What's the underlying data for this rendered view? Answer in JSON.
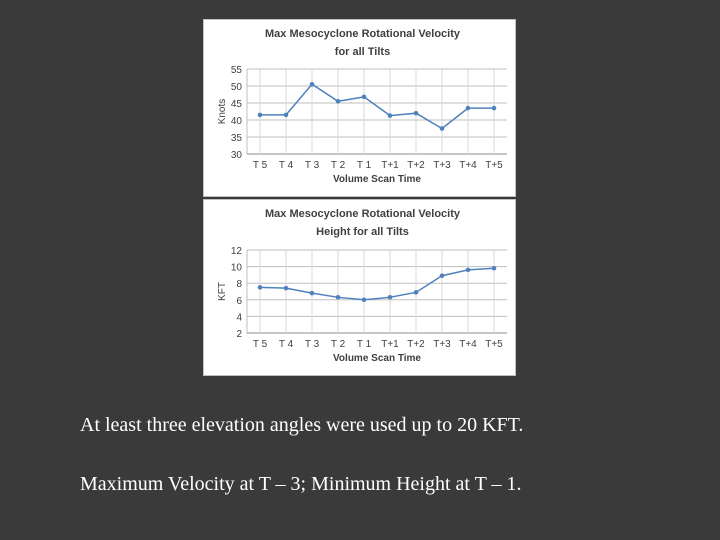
{
  "chart_data": [
    {
      "type": "line",
      "title_lines": [
        "Max Mesocyclone Rotational Velocity",
        "for all Tilts"
      ],
      "xlabel": "Volume Scan Time",
      "ylabel": "Knots",
      "categories": [
        "T 5",
        "T 4",
        "T 3",
        "T 2",
        "T 1",
        "T+1",
        "T+2",
        "T+3",
        "T+4",
        "T+5"
      ],
      "series": [
        {
          "values": [
            41.5,
            41.5,
            50.5,
            45.5,
            46.8,
            41.3,
            42,
            37.5,
            43.5,
            43.5
          ]
        }
      ],
      "yticks": [
        30,
        35,
        40,
        45,
        50,
        55
      ],
      "ylim": [
        30,
        55
      ],
      "grid": true,
      "line_color": "#4f81bd"
    },
    {
      "type": "line",
      "title_lines": [
        "Max Mesocyclone Rotational Velocity",
        "Height for all Tilts"
      ],
      "xlabel": "Volume Scan Time",
      "ylabel": "KFT",
      "categories": [
        "T 5",
        "T 4",
        "T 3",
        "T 2",
        "T 1",
        "T+1",
        "T+2",
        "T+3",
        "T+4",
        "T+5"
      ],
      "series": [
        {
          "values": [
            7.5,
            7.4,
            6.8,
            6.3,
            6.0,
            6.3,
            6.9,
            8.9,
            9.6,
            9.8
          ]
        }
      ],
      "yticks": [
        2,
        4,
        6,
        8,
        10,
        12
      ],
      "ylim": [
        2,
        12
      ],
      "grid": true,
      "line_color": "#4f81bd"
    }
  ],
  "captions": [
    "At least three elevation angles were used up to 20 KFT.",
    "Maximum Velocity at T – 3;  Minimum Height at T – 1."
  ]
}
